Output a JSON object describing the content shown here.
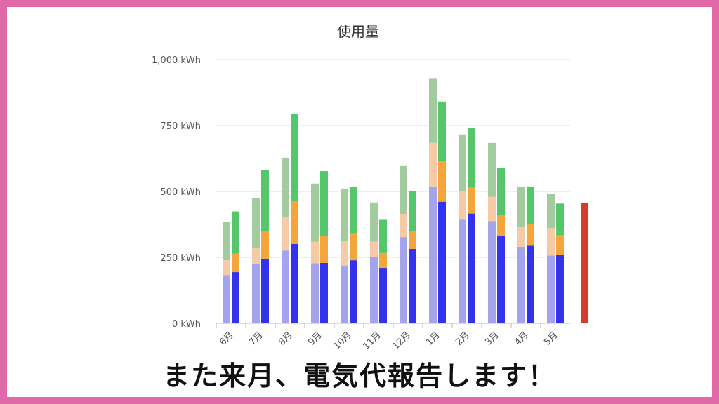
{
  "chart_data": {
    "type": "bar",
    "title": "使用量",
    "ylim": [
      0,
      1000
    ],
    "yticks": [
      "0 kWh",
      "250 kWh",
      "500 kWh",
      "750 kWh",
      "1,000 kWh"
    ],
    "ytick_values": [
      0,
      250,
      500,
      750,
      1000
    ],
    "grid": true,
    "stacked": true,
    "categories": [
      "6月",
      "7月",
      "8月",
      "9月",
      "10月",
      "11月",
      "12月",
      "1月",
      "2月",
      "3月",
      "4月",
      "5月"
    ],
    "groups": [
      {
        "segment_colors": [
          "#a4a4ee",
          "#f5caa4",
          "#a2cc9f"
        ],
        "segments": [
          [
            183,
            56,
            145
          ],
          [
            224,
            62,
            190
          ],
          [
            276,
            127,
            225
          ],
          [
            228,
            81,
            221
          ],
          [
            219,
            93,
            199
          ],
          [
            250,
            60,
            148
          ],
          [
            327,
            88,
            184
          ],
          [
            518,
            166,
            246
          ],
          [
            395,
            105,
            216
          ],
          [
            388,
            92,
            204
          ],
          [
            290,
            74,
            152
          ],
          [
            257,
            104,
            129
          ]
        ]
      },
      {
        "segment_colors": [
          "#3333ee",
          "#f4a63a",
          "#55c66a"
        ],
        "segments": [
          [
            194,
            70,
            160
          ],
          [
            245,
            105,
            231
          ],
          [
            301,
            164,
            330
          ],
          [
            229,
            101,
            247
          ],
          [
            239,
            103,
            174
          ],
          [
            210,
            59,
            126
          ],
          [
            282,
            67,
            152
          ],
          [
            461,
            153,
            227
          ],
          [
            416,
            98,
            227
          ],
          [
            333,
            78,
            177
          ],
          [
            294,
            82,
            143
          ],
          [
            261,
            73,
            120
          ]
        ]
      }
    ],
    "marker": {
      "value": 455,
      "color": "#d83a2c"
    }
  },
  "caption": "また来月、電気代報告します！"
}
